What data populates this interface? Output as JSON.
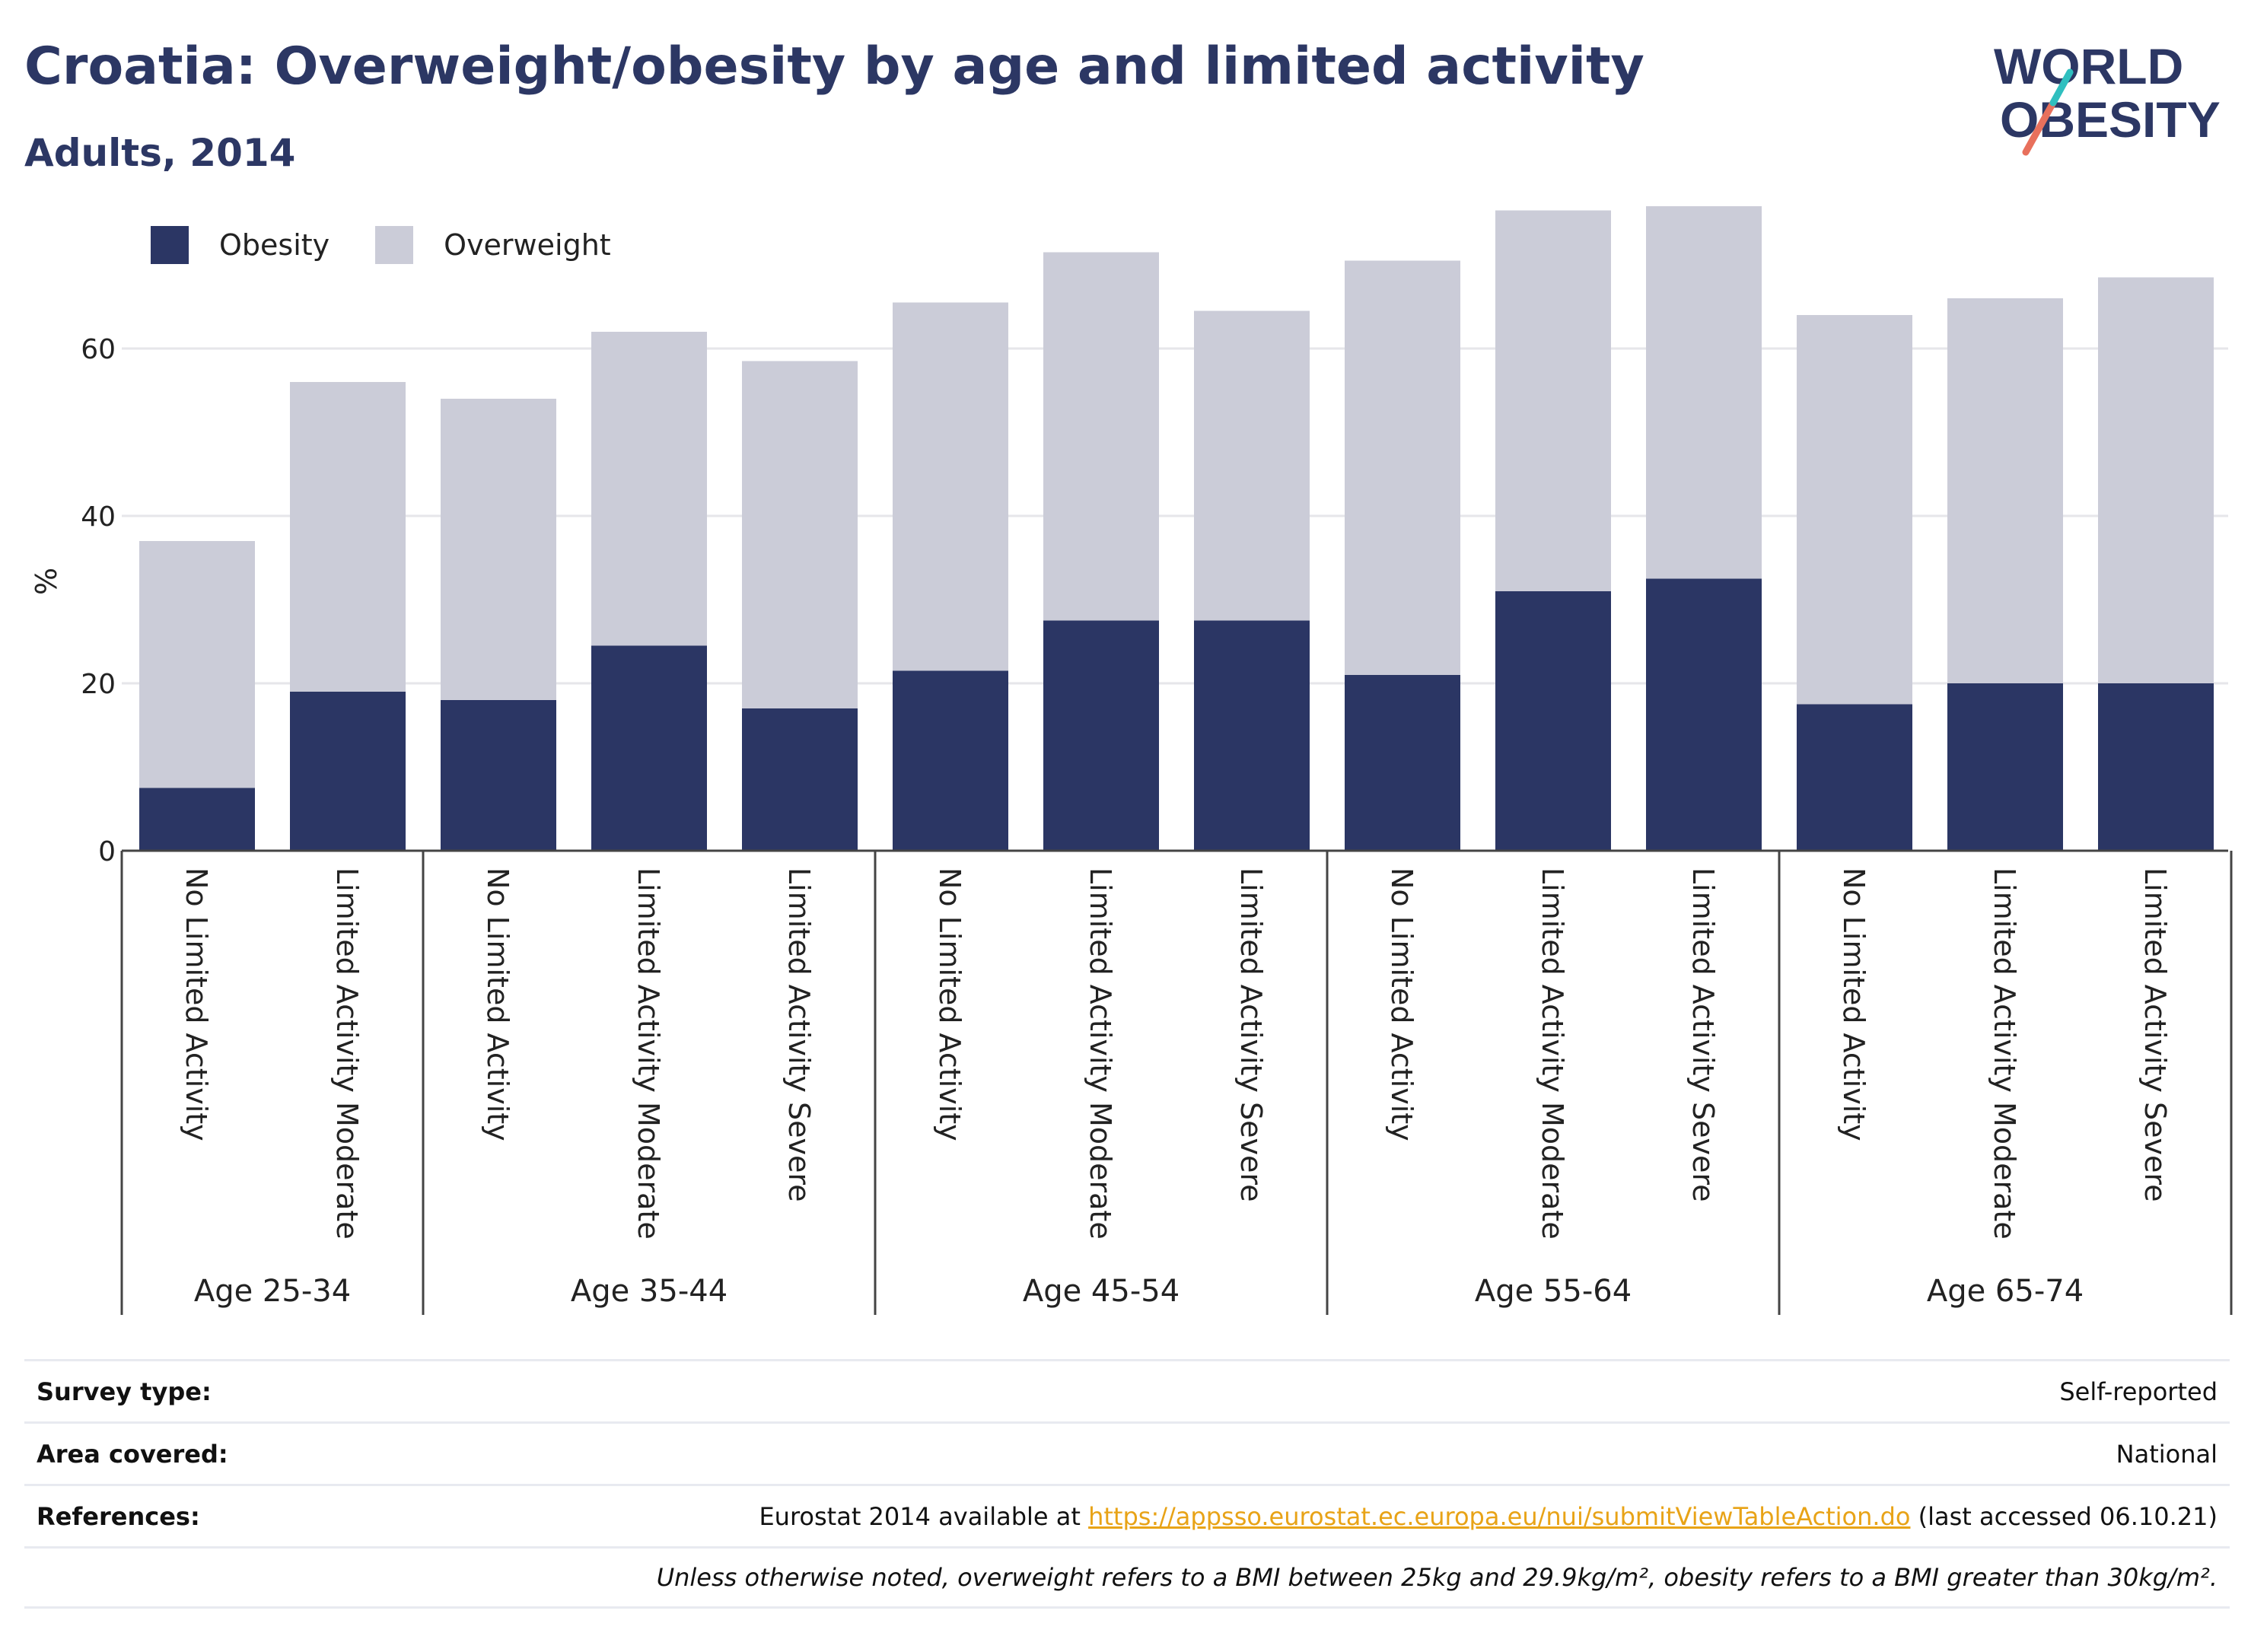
{
  "title": "Croatia: Overweight/obesity by age and limited activity",
  "subtitle": "Adults, 2014",
  "logo": {
    "line1": "WORLD",
    "line2": "OBESITY"
  },
  "colors": {
    "obesity": "#2b3664",
    "overweight": "#cbccd8",
    "text": "#2c3764",
    "link": "#e8a317"
  },
  "chart_data": {
    "type": "bar",
    "stacked": true,
    "ylabel": "%",
    "ylim": [
      0,
      80
    ],
    "yticks": [
      0,
      20,
      40,
      60
    ],
    "grid": true,
    "legend_position": "top-left",
    "groups": [
      {
        "label": "Age 25-34",
        "categories": [
          "No Limited Activity",
          "Limited Activity Moderate"
        ]
      },
      {
        "label": "Age 35-44",
        "categories": [
          "No Limited Activity",
          "Limited Activity Moderate",
          "Limited Activity Severe"
        ]
      },
      {
        "label": "Age 45-54",
        "categories": [
          "No Limited Activity",
          "Limited Activity Moderate",
          "Limited Activity Severe"
        ]
      },
      {
        "label": "Age 55-64",
        "categories": [
          "No Limited Activity",
          "Limited Activity Moderate",
          "Limited Activity Severe"
        ]
      },
      {
        "label": "Age 65-74",
        "categories": [
          "No Limited Activity",
          "Limited Activity Moderate",
          "Limited Activity Severe"
        ]
      }
    ],
    "series": [
      {
        "name": "Obesity",
        "values": [
          7.5,
          19.0,
          18.0,
          24.5,
          17.0,
          21.5,
          27.5,
          27.5,
          21.0,
          31.0,
          32.5,
          17.5,
          20.0,
          20.0
        ]
      },
      {
        "name": "Overweight",
        "values": [
          29.5,
          37.0,
          36.0,
          37.5,
          41.5,
          44.0,
          44.0,
          37.0,
          49.5,
          45.5,
          44.5,
          46.5,
          46.0,
          48.5
        ]
      }
    ]
  },
  "info": {
    "survey_type": {
      "label": "Survey type:",
      "value": "Self-reported"
    },
    "area_covered": {
      "label": "Area covered:",
      "value": "National"
    },
    "references": {
      "label": "References:",
      "prefix": "Eurostat 2014 available at ",
      "link": "https://appsso.eurostat.ec.europa.eu/nui/submitViewTableAction.do",
      "suffix": " (last accessed 06.10.21)"
    },
    "note": "Unless otherwise noted, overweight refers to a BMI between 25kg and 29.9kg/m², obesity refers to a BMI greater than 30kg/m²."
  }
}
